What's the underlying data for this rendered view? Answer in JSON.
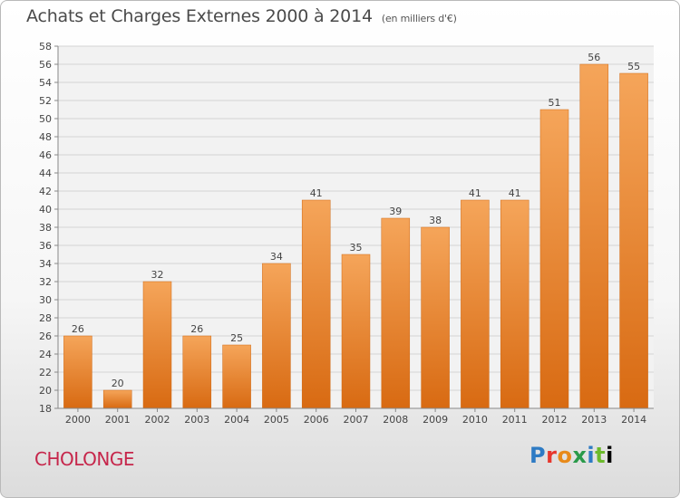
{
  "header": {
    "title": "Achats et Charges Externes 2000 à 2014",
    "unit": "(en milliers d'€)"
  },
  "footer": {
    "commune": "CHOLONGE",
    "brand": "Proxiti"
  },
  "chart_data": {
    "type": "bar",
    "categories": [
      "2000",
      "2001",
      "2002",
      "2003",
      "2004",
      "2005",
      "2006",
      "2007",
      "2008",
      "2009",
      "2010",
      "2011",
      "2012",
      "2013",
      "2014"
    ],
    "values": [
      26,
      20,
      32,
      26,
      25,
      34,
      41,
      35,
      39,
      38,
      41,
      41,
      51,
      56,
      55
    ],
    "ylim": [
      18,
      58
    ],
    "ytick_step": 2,
    "grid": true,
    "bar_color": "#f0913a"
  }
}
